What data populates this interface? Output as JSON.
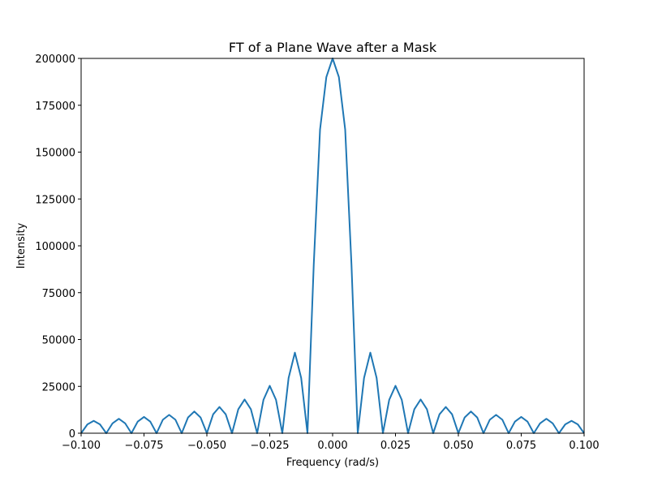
{
  "chart_data": {
    "type": "line",
    "title": "FT of a Plane Wave after a Mask",
    "xlabel": "Frequency (rad/s)",
    "ylabel": "Intensity",
    "xlim": [
      -0.1,
      0.1
    ],
    "ylim": [
      0,
      200000
    ],
    "grid": false,
    "legend": "none",
    "x_ticks": [
      -0.1,
      -0.075,
      -0.05,
      -0.025,
      0.0,
      0.025,
      0.05,
      0.075,
      0.1
    ],
    "x_tick_labels": [
      "−0.100",
      "−0.075",
      "−0.050",
      "−0.025",
      "0.000",
      "0.025",
      "0.050",
      "0.075",
      "0.100"
    ],
    "y_ticks": [
      0,
      25000,
      50000,
      75000,
      100000,
      125000,
      150000,
      175000,
      200000
    ],
    "y_tick_labels": [
      "0",
      "25000",
      "50000",
      "75000",
      "100000",
      "125000",
      "150000",
      "175000",
      "200000"
    ],
    "series": [
      {
        "color": "#1f77b4",
        "x": [
          -0.1,
          -0.0975,
          -0.095,
          -0.0925,
          -0.09,
          -0.0875,
          -0.085,
          -0.0825,
          -0.08,
          -0.0775,
          -0.075,
          -0.0725,
          -0.07,
          -0.0675,
          -0.065,
          -0.0625,
          -0.06,
          -0.0575,
          -0.055,
          -0.0525,
          -0.05,
          -0.0475,
          -0.045,
          -0.0425,
          -0.04,
          -0.0375,
          -0.035,
          -0.0325,
          -0.03,
          -0.0275,
          -0.025,
          -0.0225,
          -0.02,
          -0.0175,
          -0.015,
          -0.0125,
          -0.01,
          -0.0075,
          -0.005,
          -0.0025,
          0.0,
          0.0025,
          0.005,
          0.0075,
          0.01,
          0.0125,
          0.015,
          0.0175,
          0.02,
          0.0225,
          0.025,
          0.0275,
          0.03,
          0.0325,
          0.035,
          0.0375,
          0.04,
          0.0425,
          0.045,
          0.0475,
          0.05,
          0.0525,
          0.055,
          0.0575,
          0.06,
          0.0625,
          0.065,
          0.0675,
          0.07,
          0.0725,
          0.075,
          0.0775,
          0.08,
          0.0825,
          0.085,
          0.0875,
          0.09,
          0.0925,
          0.095,
          0.0975,
          0.1
        ],
        "y": [
          0,
          4700,
          6600,
          4700,
          0,
          5300,
          7700,
          5300,
          0,
          6200,
          8700,
          6200,
          0,
          7200,
          9800,
          7200,
          0,
          8400,
          11600,
          8400,
          0,
          10100,
          14000,
          10100,
          0,
          12800,
          18000,
          12800,
          0,
          17800,
          25300,
          17800,
          0,
          29500,
          43000,
          29500,
          0,
          90000,
          162000,
          190000,
          200000,
          190000,
          162000,
          90000,
          0,
          29500,
          43000,
          29500,
          0,
          17800,
          25300,
          17800,
          0,
          12800,
          18000,
          12800,
          0,
          10100,
          14000,
          10100,
          0,
          8400,
          11600,
          8400,
          0,
          7200,
          9800,
          7200,
          0,
          6200,
          8700,
          6200,
          0,
          5300,
          7700,
          5300,
          0,
          4700,
          6600,
          4700,
          0
        ]
      }
    ]
  }
}
